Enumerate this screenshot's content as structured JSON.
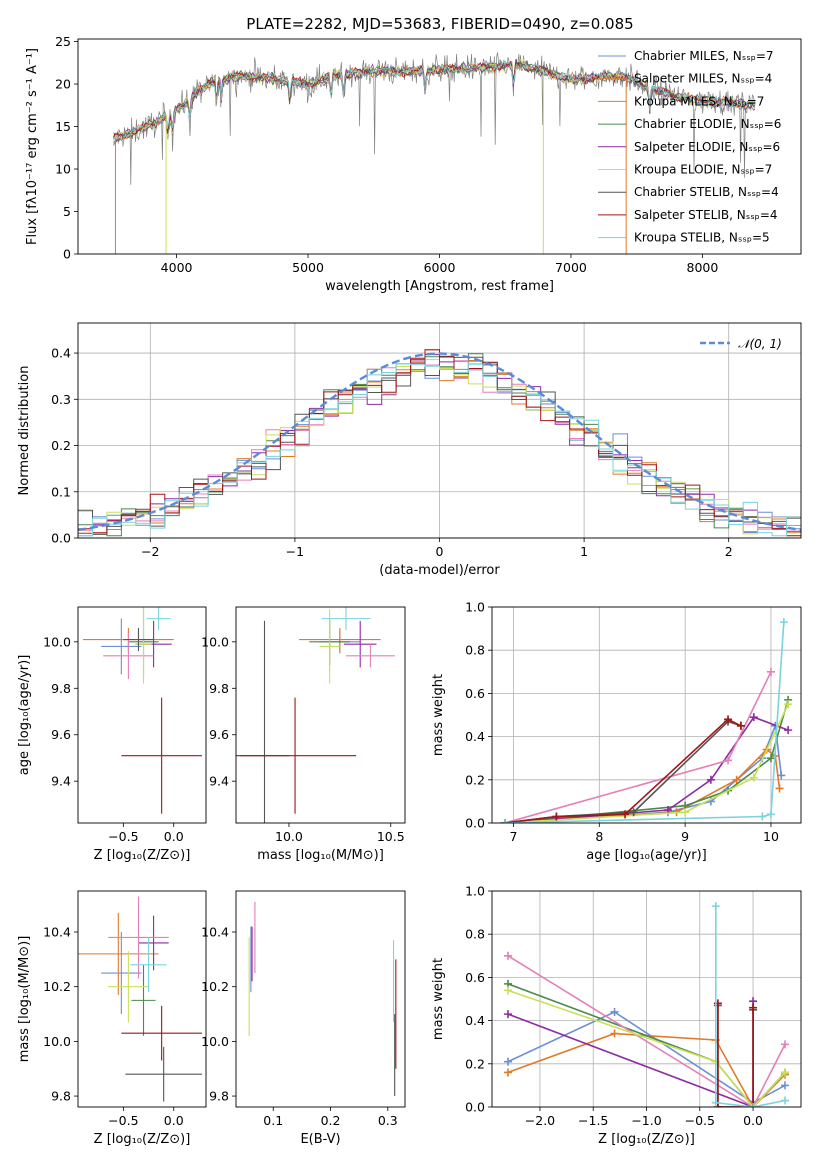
{
  "page_title": "PLATE=2282, MJD=53683, FIBERID=0490, z=0.085",
  "colors": [
    "#6a8fd6",
    "#8e2aa3",
    "#e07b2a",
    "#4a8a4a",
    "#e47fb8",
    "#c9e05a",
    "#555555",
    "#a31515",
    "#7ad3dd"
  ],
  "chart_data": [
    {
      "id": "spectrum",
      "type": "line",
      "xlabel": "wavelength [Angstrom, rest frame]",
      "ylabel": "Flux [fλ10⁻¹⁷ erg cm⁻² s⁻¹ A⁻¹]",
      "xlim": [
        3250,
        8750
      ],
      "ylim": [
        0,
        25.3
      ],
      "xticks": [
        4000,
        5000,
        6000,
        7000,
        8000
      ],
      "yticks": [
        0,
        5,
        10,
        15,
        20,
        25
      ],
      "legend_position": "top-right",
      "series_labels": [
        "Chabrier MILES, Nₛₛₚ=7",
        "Salpeter MILES, Nₛₛₚ=4",
        "Kroupa MILES, Nₛₛₚ=7",
        "Chabrier ELODIE, Nₛₛₚ=6",
        "Salpeter ELODIE, Nₛₛₚ=6",
        "Kroupa ELODIE, Nₛₛₚ=7",
        "Chabrier STELIB, Nₛₛₚ=4",
        "Salpeter STELIB, Nₛₛₚ=4",
        "Kroupa STELIB, Nₛₛₚ=5"
      ],
      "series_colors": [
        "#6a8fd6",
        "#e07b2a",
        "#e07b2a",
        "#4a8a4a",
        "#8e2aa3",
        "#c9e05a",
        "#555555",
        "#a31515",
        "#7ad3dd"
      ],
      "continuum": [
        [
          3520,
          13.5
        ],
        [
          3700,
          14.5
        ],
        [
          3850,
          15.5
        ],
        [
          3950,
          16.5
        ],
        [
          4050,
          17.5
        ],
        [
          4150,
          19.0
        ],
        [
          4300,
          20.5
        ],
        [
          4500,
          21.0
        ],
        [
          4800,
          20.5
        ],
        [
          5000,
          20.0
        ],
        [
          5200,
          21.0
        ],
        [
          5500,
          21.5
        ],
        [
          5800,
          21.5
        ],
        [
          6100,
          21.8
        ],
        [
          6400,
          22.0
        ],
        [
          6600,
          22.3
        ],
        [
          6800,
          21.5
        ],
        [
          7000,
          20.5
        ],
        [
          7200,
          20.8
        ],
        [
          7400,
          21.0
        ],
        [
          7600,
          19.5
        ],
        [
          7800,
          18.5
        ],
        [
          8000,
          18.0
        ],
        [
          8200,
          17.8
        ],
        [
          8400,
          17.5
        ]
      ]
    },
    {
      "id": "residual-histogram",
      "type": "line",
      "xlabel": "(data-model)/error",
      "ylabel": "Normed distribution",
      "xlim": [
        -2.5,
        2.5
      ],
      "ylim": [
        0,
        0.465
      ],
      "xticks": [
        -2,
        -1,
        0,
        1,
        2
      ],
      "yticks": [
        0.0,
        0.1,
        0.2,
        0.3,
        0.4
      ],
      "legend_position": "top-right",
      "reference_label": "𝒩(0, 1)"
    },
    {
      "id": "age-vs-z",
      "type": "scatter",
      "xlabel": "Z [log₁₀(Z/Z⊙)]",
      "ylabel": "age  [log₁₀(age/yr)]",
      "xlim": [
        -0.95,
        0.32
      ],
      "ylim": [
        9.22,
        10.15
      ],
      "xticks": [
        -0.5,
        0.0
      ],
      "yticks": [
        9.4,
        9.6,
        9.8,
        10.0
      ],
      "points": [
        {
          "x": -0.52,
          "y": 9.98,
          "xerr": 0.2,
          "yerr": 0.12,
          "color": "#6a8fd6"
        },
        {
          "x": -0.45,
          "y": 10.01,
          "xerr": 0.45,
          "yerr": 0.05,
          "color": "#e07b2a"
        },
        {
          "x": -0.3,
          "y": 10.0,
          "xerr": 0.15,
          "yerr": 0.15,
          "color": "#4a8a4a"
        },
        {
          "x": -0.2,
          "y": 9.99,
          "xerr": 0.18,
          "yerr": 0.1,
          "color": "#8e2aa3"
        },
        {
          "x": -0.45,
          "y": 9.94,
          "xerr": 0.25,
          "yerr": 0.1,
          "color": "#e47fb8"
        },
        {
          "x": -0.3,
          "y": 9.99,
          "xerr": 0.08,
          "yerr": 0.17,
          "color": "#c9e05a"
        },
        {
          "x": -0.35,
          "y": 10.01,
          "xerr": 0.15,
          "yerr": 0.05,
          "color": "#555555"
        },
        {
          "x": -0.12,
          "y": 9.51,
          "xerr": 0.4,
          "yerr": 0.25,
          "color": "#a31515"
        },
        {
          "x": -0.15,
          "y": 10.1,
          "xerr": 0.12,
          "yerr": 0.05,
          "color": "#7ad3dd"
        }
      ]
    },
    {
      "id": "age-vs-mass",
      "type": "scatter",
      "xlabel": "mass [log₁₀(M/M⊙)]",
      "ylabel": "",
      "xlim": [
        9.74,
        10.57
      ],
      "ylim": [
        9.22,
        10.15
      ],
      "xticks": [
        10.0,
        10.5
      ],
      "yticks": [
        9.4,
        9.6,
        9.8,
        10.0
      ],
      "points": [
        {
          "x": 10.25,
          "y": 10.0,
          "xerr": 0.1,
          "yerr": 0.05,
          "color": "#6a8fd6"
        },
        {
          "x": 10.25,
          "y": 10.01,
          "xerr": 0.2,
          "yerr": 0.05,
          "color": "#e07b2a"
        },
        {
          "x": 10.2,
          "y": 10.0,
          "xerr": 0.1,
          "yerr": 0.1,
          "color": "#4a8a4a"
        },
        {
          "x": 10.35,
          "y": 9.99,
          "xerr": 0.08,
          "yerr": 0.1,
          "color": "#8e2aa3"
        },
        {
          "x": 10.4,
          "y": 9.94,
          "xerr": 0.12,
          "yerr": 0.05,
          "color": "#e47fb8"
        },
        {
          "x": 10.2,
          "y": 9.98,
          "xerr": 0.05,
          "yerr": 0.16,
          "color": "#c9e05a"
        },
        {
          "x": 9.88,
          "y": 9.51,
          "xerr": 0.12,
          "yerr": 0.58,
          "color": "#555555"
        },
        {
          "x": 10.03,
          "y": 9.51,
          "xerr": 0.3,
          "yerr": 0.25,
          "color": "#a31515"
        },
        {
          "x": 10.28,
          "y": 10.1,
          "xerr": 0.12,
          "yerr": 0.05,
          "color": "#7ad3dd"
        }
      ]
    },
    {
      "id": "mass-weight-vs-age",
      "type": "line",
      "xlabel": "age  [log₁₀(age/yr)]",
      "ylabel": "mass weight",
      "xlim": [
        6.75,
        10.35
      ],
      "ylim": [
        0,
        1.0
      ],
      "xticks": [
        7,
        8,
        9,
        10
      ],
      "yticks": [
        0.0,
        0.2,
        0.4,
        0.6,
        0.8,
        1.0
      ],
      "series": [
        {
          "color": "#6a8fd6",
          "points": [
            [
              6.9,
              0.0
            ],
            [
              8.8,
              0.05
            ],
            [
              9.3,
              0.1
            ],
            [
              9.9,
              0.3
            ],
            [
              10.05,
              0.45
            ],
            [
              10.12,
              0.22
            ]
          ]
        },
        {
          "color": "#e07b2a",
          "points": [
            [
              6.9,
              0.0
            ],
            [
              8.9,
              0.05
            ],
            [
              9.6,
              0.2
            ],
            [
              9.95,
              0.34
            ],
            [
              10.05,
              0.31
            ],
            [
              10.1,
              0.16
            ]
          ]
        },
        {
          "color": "#4a8a4a",
          "points": [
            [
              6.9,
              0.0
            ],
            [
              9.0,
              0.08
            ],
            [
              9.5,
              0.15
            ],
            [
              10.0,
              0.3
            ],
            [
              10.2,
              0.57
            ]
          ]
        },
        {
          "color": "#8e2aa3",
          "points": [
            [
              6.9,
              0.0
            ],
            [
              8.8,
              0.06
            ],
            [
              9.3,
              0.2
            ],
            [
              9.8,
              0.49
            ],
            [
              10.2,
              0.43
            ]
          ]
        },
        {
          "color": "#e47fb8",
          "points": [
            [
              6.9,
              0.0
            ],
            [
              9.5,
              0.29
            ],
            [
              10.0,
              0.7
            ]
          ]
        },
        {
          "color": "#c9e05a",
          "points": [
            [
              6.9,
              0.0
            ],
            [
              9.0,
              0.05
            ],
            [
              9.8,
              0.21
            ],
            [
              10.2,
              0.55
            ]
          ]
        },
        {
          "color": "#555555",
          "points": [
            [
              6.9,
              0.0
            ],
            [
              7.5,
              0.03
            ],
            [
              8.4,
              0.05
            ],
            [
              9.5,
              0.47
            ],
            [
              9.65,
              0.45
            ]
          ]
        },
        {
          "color": "#a31515",
          "points": [
            [
              6.9,
              0.0
            ],
            [
              7.5,
              0.03
            ],
            [
              8.3,
              0.04
            ],
            [
              9.5,
              0.48
            ],
            [
              9.65,
              0.45
            ]
          ]
        },
        {
          "color": "#7ad3dd",
          "points": [
            [
              6.9,
              0.0
            ],
            [
              9.9,
              0.03
            ],
            [
              10.0,
              0.04
            ],
            [
              10.15,
              0.93
            ]
          ]
        }
      ]
    },
    {
      "id": "mass-vs-z",
      "type": "scatter",
      "xlabel": "Z [log₁₀(Z/Z⊙)]",
      "ylabel": "mass [log₁₀(M/M⊙)]",
      "xlim": [
        -0.95,
        0.32
      ],
      "ylim": [
        9.76,
        10.55
      ],
      "xticks": [
        -0.5,
        0.0
      ],
      "yticks": [
        9.8,
        10.0,
        10.2,
        10.4
      ],
      "points": [
        {
          "x": -0.52,
          "y": 10.25,
          "xerr": 0.2,
          "yerr": 0.15,
          "color": "#6a8fd6"
        },
        {
          "x": -0.55,
          "y": 10.32,
          "xerr": 0.4,
          "yerr": 0.15,
          "color": "#e07b2a"
        },
        {
          "x": -0.3,
          "y": 10.15,
          "xerr": 0.12,
          "yerr": 0.13,
          "color": "#4a8a4a"
        },
        {
          "x": -0.2,
          "y": 10.36,
          "xerr": 0.15,
          "yerr": 0.1,
          "color": "#8e2aa3"
        },
        {
          "x": -0.35,
          "y": 10.38,
          "xerr": 0.3,
          "yerr": 0.15,
          "color": "#e47fb8"
        },
        {
          "x": -0.45,
          "y": 10.2,
          "xerr": 0.2,
          "yerr": 0.13,
          "color": "#c9e05a"
        },
        {
          "x": -0.1,
          "y": 9.88,
          "xerr": 0.38,
          "yerr": 0.1,
          "color": "#555555"
        },
        {
          "x": -0.12,
          "y": 10.03,
          "xerr": 0.4,
          "yerr": 0.1,
          "color": "#a31515"
        },
        {
          "x": -0.25,
          "y": 10.28,
          "xerr": 0.18,
          "yerr": 0.1,
          "color": "#7ad3dd"
        }
      ]
    },
    {
      "id": "mass-vs-ebv",
      "type": "scatter",
      "xlabel": "E(B-V)",
      "ylabel": "",
      "xlim": [
        0.035,
        0.33
      ],
      "ylim": [
        9.76,
        10.55
      ],
      "xticks": [
        0.1,
        0.2,
        0.3
      ],
      "yticks": [
        9.8,
        10.0,
        10.2,
        10.4
      ],
      "points": [
        {
          "x": 0.061,
          "y": 10.3,
          "xerr": 0.0,
          "yerr": 0.12,
          "color": "#6a8fd6"
        },
        {
          "x": 0.063,
          "y": 10.32,
          "xerr": 0.0,
          "yerr": 0.1,
          "color": "#8e2aa3"
        },
        {
          "x": 0.068,
          "y": 10.38,
          "xerr": 0.0,
          "yerr": 0.13,
          "color": "#e47fb8"
        },
        {
          "x": 0.058,
          "y": 10.2,
          "xerr": 0.0,
          "yerr": 0.18,
          "color": "#c9e05a"
        },
        {
          "x": 0.312,
          "y": 9.95,
          "xerr": 0.0,
          "yerr": 0.15,
          "color": "#555555"
        },
        {
          "x": 0.314,
          "y": 10.1,
          "xerr": 0.0,
          "yerr": 0.2,
          "color": "#a31515"
        },
        {
          "x": 0.31,
          "y": 10.22,
          "xerr": 0.0,
          "yerr": 0.15,
          "color": "#7ad3dd"
        }
      ]
    },
    {
      "id": "mass-weight-vs-z",
      "type": "line",
      "xlabel": "Z [log₁₀(Z/Z⊙)]",
      "ylabel": "mass weight",
      "xlim": [
        -2.45,
        0.45
      ],
      "ylim": [
        0,
        1.0
      ],
      "xticks": [
        -2.0,
        -1.5,
        -1.0,
        -0.5,
        0.0
      ],
      "yticks": [
        0.0,
        0.2,
        0.4,
        0.6,
        0.8,
        1.0
      ],
      "series": [
        {
          "color": "#6a8fd6",
          "points": [
            [
              -2.3,
              0.21
            ],
            [
              -1.3,
              0.44
            ],
            [
              0.0,
              0.02
            ],
            [
              0.3,
              0.1
            ]
          ]
        },
        {
          "color": "#e07b2a",
          "points": [
            [
              -2.3,
              0.16
            ],
            [
              -1.3,
              0.34
            ],
            [
              -0.35,
              0.31
            ],
            [
              0.0,
              0.0
            ],
            [
              0.3,
              0.15
            ]
          ]
        },
        {
          "color": "#4a8a4a",
          "points": [
            [
              -2.3,
              0.57
            ],
            [
              -0.35,
              0.21
            ],
            [
              0.0,
              0.0
            ],
            [
              0.3,
              0.16
            ]
          ]
        },
        {
          "color": "#8e2aa3",
          "points": [
            [
              -2.3,
              0.43
            ],
            [
              0.0,
              0.0
            ],
            [
              0.0,
              0.49
            ]
          ]
        },
        {
          "color": "#e47fb8",
          "points": [
            [
              -2.3,
              0.7
            ],
            [
              0.0,
              0.0
            ],
            [
              0.3,
              0.29
            ]
          ]
        },
        {
          "color": "#c9e05a",
          "points": [
            [
              -2.3,
              0.54
            ],
            [
              -0.35,
              0.21
            ],
            [
              0.0,
              0.0
            ],
            [
              0.3,
              0.16
            ]
          ]
        },
        {
          "color": "#555555",
          "points": [
            [
              -0.33,
              0.47
            ],
            [
              -0.33,
              0.0
            ],
            [
              0.0,
              0.0
            ],
            [
              0.0,
              0.45
            ]
          ]
        },
        {
          "color": "#a31515",
          "points": [
            [
              -0.33,
              0.48
            ],
            [
              -0.33,
              0.0
            ],
            [
              0.0,
              0.0
            ],
            [
              0.0,
              0.46
            ]
          ]
        },
        {
          "color": "#7ad3dd",
          "points": [
            [
              -0.35,
              0.93
            ],
            [
              -0.35,
              0.02
            ],
            [
              0.0,
              0.0
            ],
            [
              0.3,
              0.03
            ]
          ]
        }
      ]
    }
  ]
}
